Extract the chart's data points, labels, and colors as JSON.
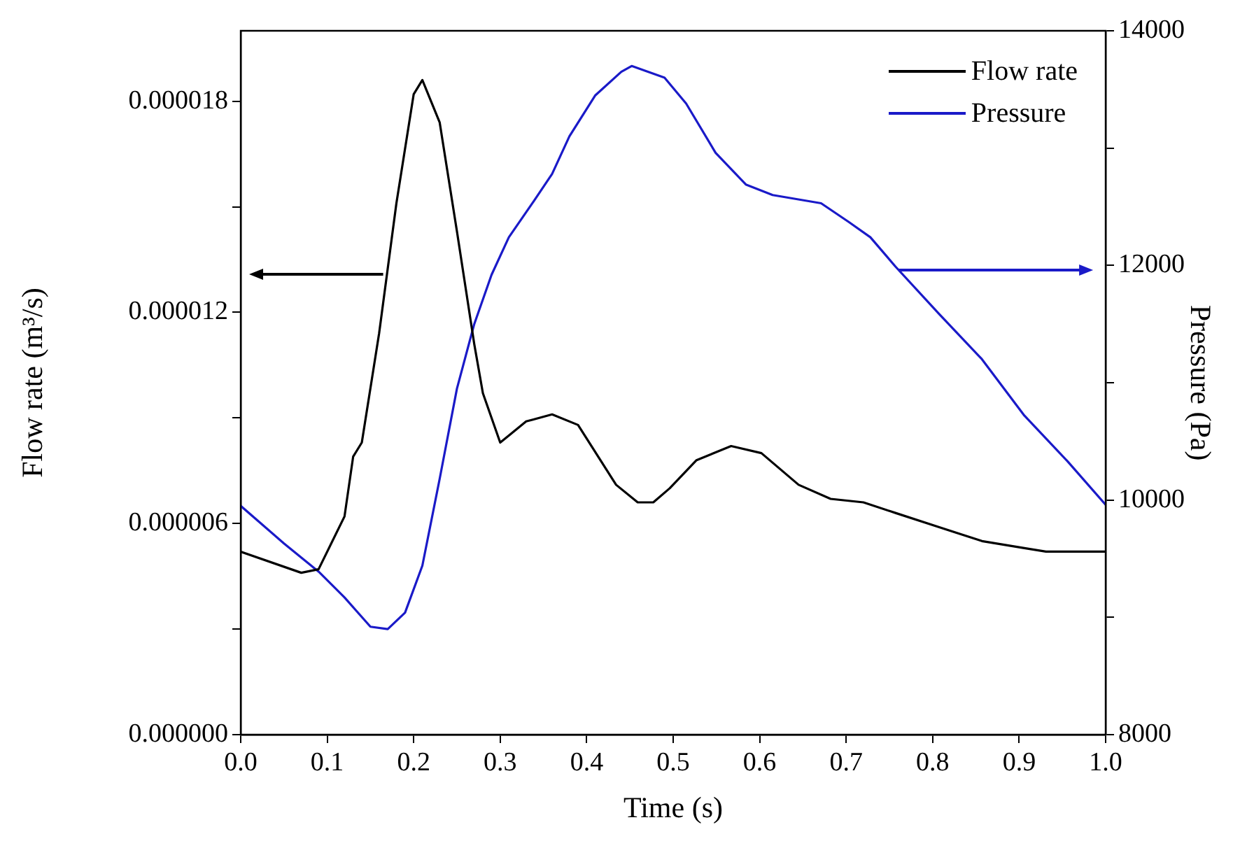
{
  "chart_data": {
    "type": "line",
    "xlabel": "Time (s)",
    "ylabel": "Flow rate (m³/s)",
    "y2label": "Pressure (Pa)",
    "xlim": [
      0,
      1
    ],
    "xticks": [
      {
        "value": 0,
        "label": "0.0"
      },
      0.1,
      0.2,
      0.3,
      0.4,
      0.5,
      0.6,
      0.7,
      0.8,
      0.9,
      {
        "value": 1,
        "label": "1.0"
      }
    ],
    "ylim": [
      0,
      2e-05
    ],
    "yticks": [
      {
        "value": 0,
        "label": "0.000000"
      },
      {
        "value": 3e-06,
        "label": null
      },
      {
        "value": 6e-06,
        "label": "0.000006"
      },
      {
        "value": 9e-06,
        "label": null
      },
      {
        "value": 1.2e-05,
        "label": "0.000012"
      },
      {
        "value": 1.5e-05,
        "label": null
      },
      {
        "value": 1.8e-05,
        "label": "0.000018"
      }
    ],
    "y2lim": [
      8000,
      14000
    ],
    "y2ticks": [
      8000,
      {
        "value": 9000,
        "label": null
      },
      10000,
      {
        "value": 11000,
        "label": null
      },
      12000,
      {
        "value": 13000,
        "label": null
      },
      14000
    ],
    "grid": false,
    "legend": "top right",
    "marker": "none",
    "line_style": "solid",
    "series": [
      {
        "name": "Flow rate",
        "color": "#000000",
        "x": [
          0,
          0.07,
          0.09,
          0.12,
          0.13,
          0.14,
          0.16,
          0.18,
          0.2,
          0.21,
          0.23,
          0.25,
          0.27,
          0.28,
          0.3,
          0.31,
          0.33,
          0.36,
          0.39,
          0.434,
          0.459,
          0.477,
          0.496,
          0.527,
          0.567,
          0.602,
          0.645,
          0.682,
          0.72,
          0.757,
          0.807,
          0.857,
          0.906,
          0.931,
          1
        ],
        "values": [
          5.2e-06,
          4.6e-06,
          4.7e-06,
          6.2e-06,
          7.9e-06,
          8.3e-06,
          1.14e-05,
          1.51e-05,
          1.82e-05,
          1.86e-05,
          1.74e-05,
          1.43e-05,
          1.11e-05,
          9.7e-06,
          8.3e-06,
          8.5e-06,
          8.9e-06,
          9.1e-06,
          8.8e-06,
          7.1e-06,
          6.6e-06,
          6.6e-06,
          7e-06,
          7.8e-06,
          8.2e-06,
          8e-06,
          7.1e-06,
          6.7e-06,
          6.6e-06,
          6.3e-06,
          5.9e-06,
          5.5e-06,
          5.3e-06,
          5.2e-06,
          5.2e-06
        ]
      },
      {
        "name": "Pressure",
        "color": "#1a1ac8",
        "axis": "y2",
        "x": [
          0,
          0.05,
          0.09,
          0.12,
          0.15,
          0.17,
          0.19,
          0.21,
          0.23,
          0.25,
          0.27,
          0.29,
          0.31,
          0.34,
          0.36,
          0.38,
          0.41,
          0.44,
          0.452,
          0.49,
          0.515,
          0.549,
          0.584,
          0.615,
          0.671,
          0.703,
          0.728,
          0.757,
          0.807,
          0.857,
          0.906,
          0.956,
          1
        ],
        "values": [
          9950,
          9630,
          9390,
          9170,
          8920,
          8900,
          9040,
          9440,
          10180,
          10950,
          11500,
          11920,
          12240,
          12560,
          12780,
          13100,
          13450,
          13650,
          13700,
          13600,
          13380,
          12960,
          12690,
          12600,
          12530,
          12370,
          12240,
          11990,
          11590,
          11200,
          10720,
          10330,
          9960
        ]
      }
    ]
  }
}
